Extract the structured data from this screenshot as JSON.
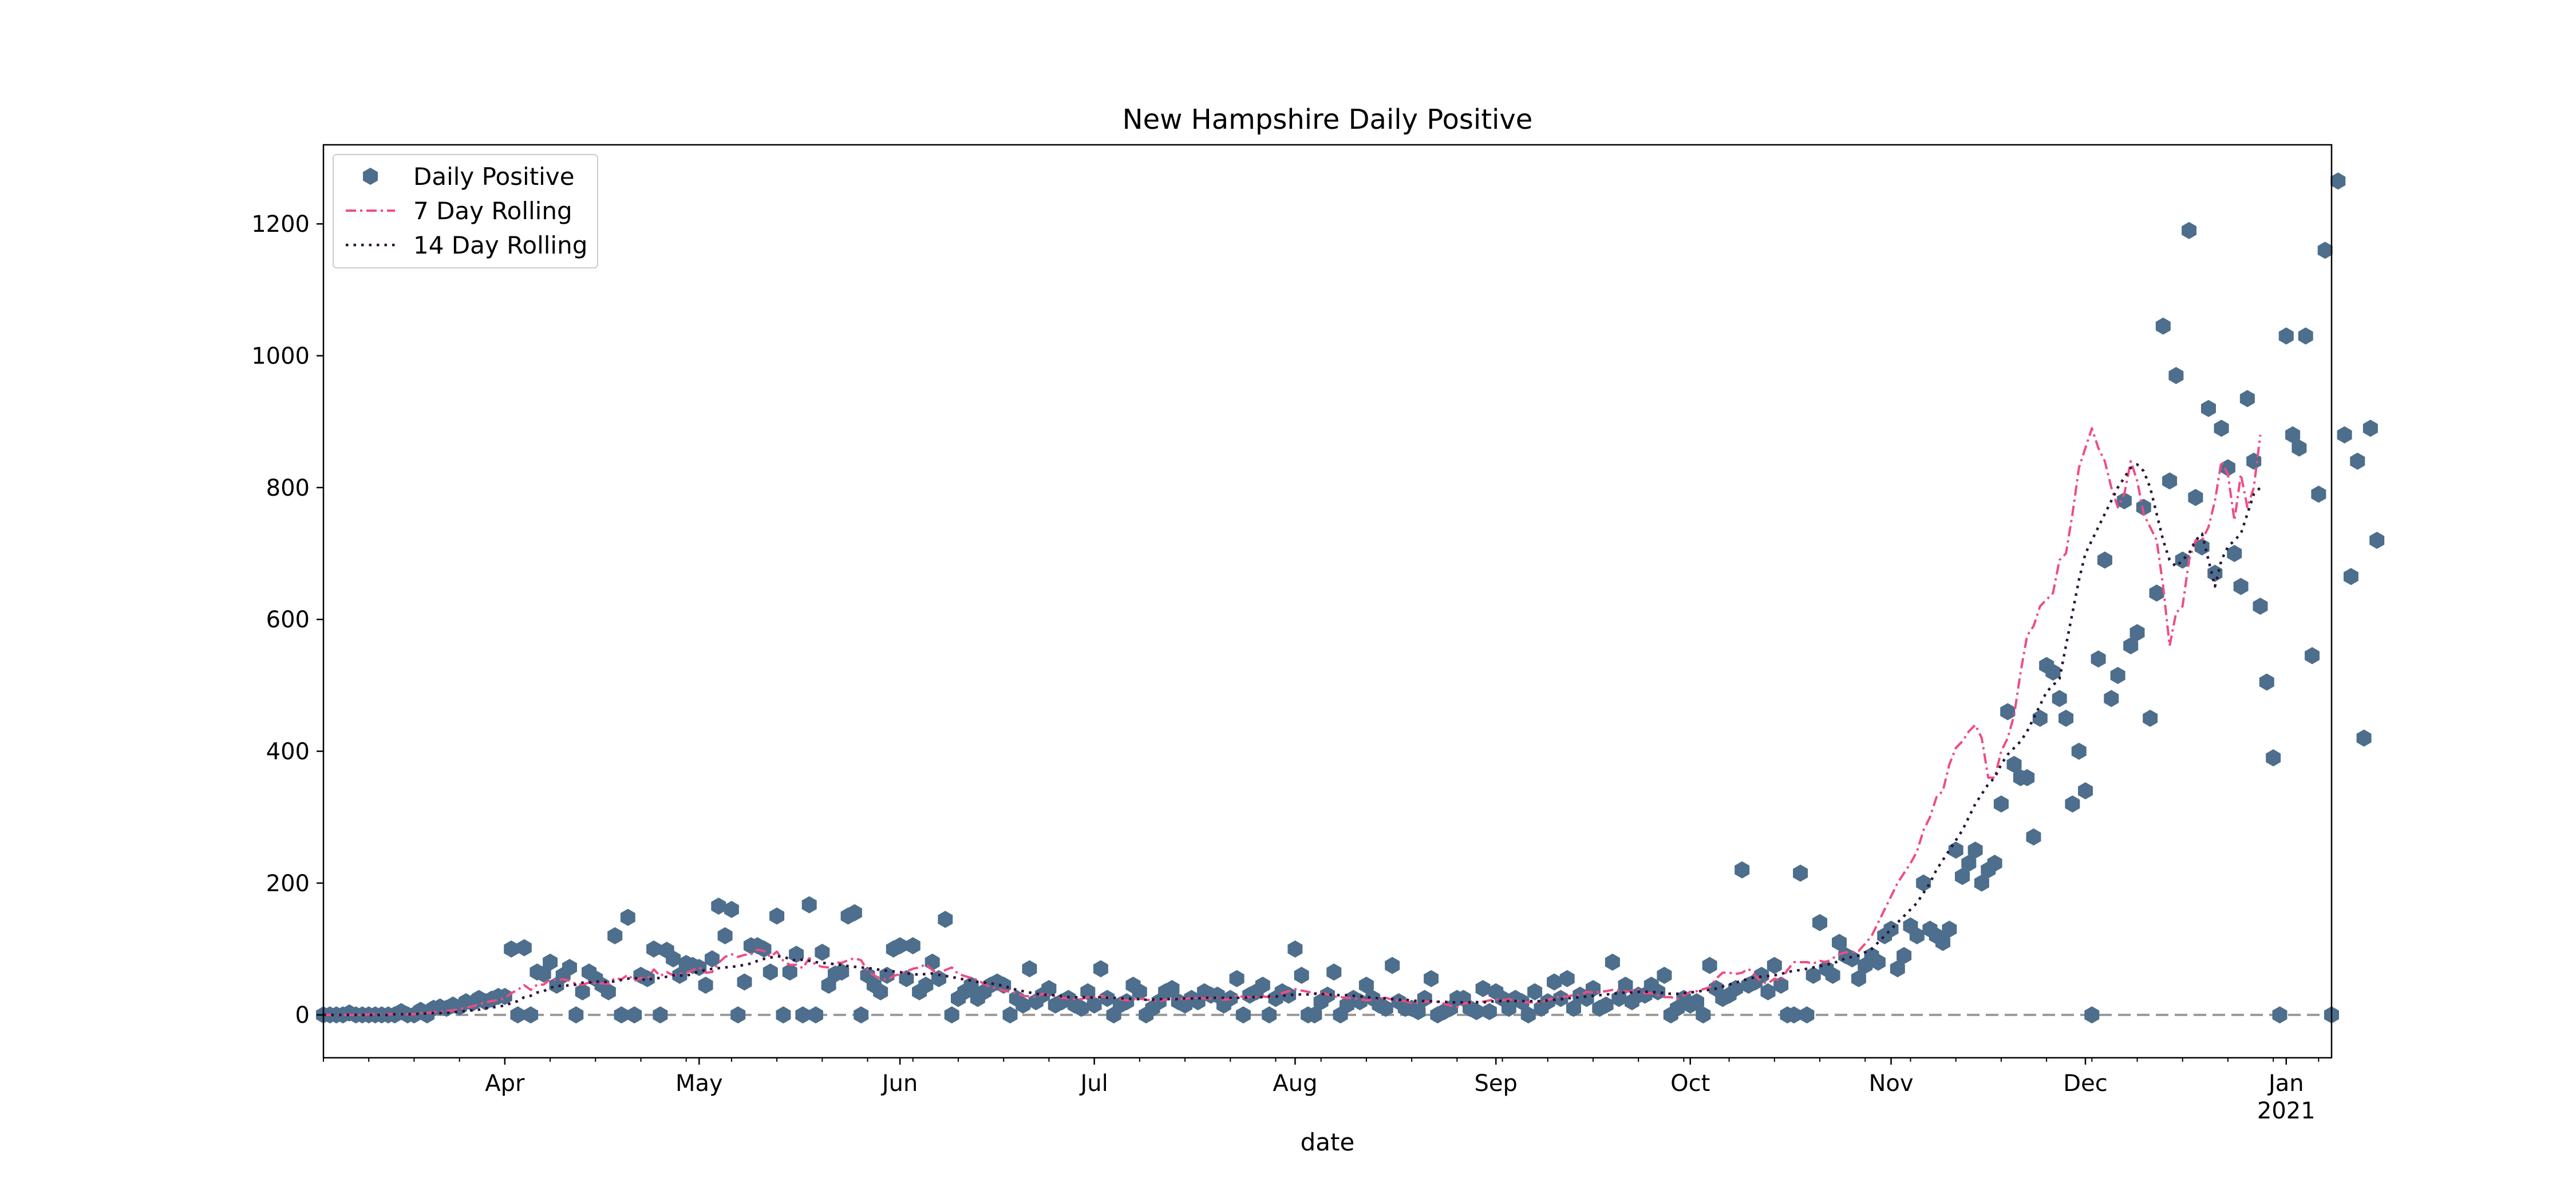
{
  "chart_data": {
    "type": "scatter",
    "title": "New Hampshire Daily Positive",
    "xlabel": "date",
    "ylabel": "",
    "x_range": [
      "2020-03-04",
      "2021-01-08"
    ],
    "ylim": [
      -65,
      1320
    ],
    "yticks": [
      0,
      200,
      400,
      600,
      800,
      1000,
      1200
    ],
    "xticks": [
      {
        "date": "2020-04-01",
        "label": "Apr"
      },
      {
        "date": "2020-05-01",
        "label": "May"
      },
      {
        "date": "2020-06-01",
        "label": "Jun"
      },
      {
        "date": "2020-07-01",
        "label": "Jul"
      },
      {
        "date": "2020-08-01",
        "label": "Aug"
      },
      {
        "date": "2020-09-01",
        "label": "Sep"
      },
      {
        "date": "2020-10-01",
        "label": "Oct"
      },
      {
        "date": "2020-11-01",
        "label": "Nov"
      },
      {
        "date": "2020-12-01",
        "label": "Dec"
      },
      {
        "date": "2021-01-01",
        "label": "Jan",
        "sublabel": "2021"
      }
    ],
    "grid": false,
    "legend_position": "top-left",
    "zero_line": {
      "y": 0,
      "style": "dashed",
      "color": "#999999"
    },
    "start_date": "2020-03-04",
    "series": [
      {
        "name": "Daily Positive",
        "kind": "markers",
        "marker": "hexagon",
        "color": "#4d6e8c",
        "values": [
          0,
          0,
          0,
          0,
          3,
          0,
          0,
          0,
          0,
          0,
          0,
          0,
          5,
          0,
          0,
          7,
          0,
          10,
          12,
          10,
          15,
          12,
          20,
          18,
          25,
          20,
          24,
          28,
          28,
          100,
          0,
          102,
          0,
          65,
          62,
          80,
          45,
          60,
          72,
          0,
          35,
          65,
          55,
          45,
          35,
          120,
          0,
          148,
          0,
          60,
          55,
          100,
          0,
          98,
          85,
          60,
          78,
          75,
          72,
          45,
          85,
          165,
          120,
          160,
          0,
          50,
          105,
          105,
          100,
          65,
          150,
          0,
          65,
          92,
          0,
          167,
          0,
          95,
          45,
          62,
          65,
          150,
          155,
          0,
          60,
          45,
          35,
          60,
          100,
          105,
          55,
          105,
          35,
          45,
          80,
          55,
          145,
          0,
          25,
          35,
          45,
          25,
          35,
          45,
          50,
          45,
          0,
          25,
          15,
          70,
          20,
          30,
          40,
          15,
          20,
          25,
          15,
          10,
          35,
          15,
          70,
          25,
          0,
          15,
          20,
          45,
          35,
          0,
          10,
          20,
          35,
          40,
          20,
          15,
          25,
          20,
          35,
          30,
          30,
          15,
          25,
          55,
          0,
          30,
          35,
          45,
          0,
          25,
          35,
          30,
          100,
          60,
          0,
          0,
          20,
          30,
          65,
          0,
          15,
          25,
          20,
          45,
          25,
          15,
          10,
          75,
          20,
          10,
          10,
          5,
          25,
          55,
          0,
          5,
          10,
          25,
          25,
          10,
          5,
          40,
          5,
          35,
          25,
          10,
          25,
          20,
          0,
          35,
          10,
          20,
          50,
          25,
          55,
          10,
          30,
          25,
          40,
          10,
          15,
          80,
          25,
          45,
          20,
          30,
          30,
          45,
          35,
          60,
          0,
          10,
          25,
          15,
          20,
          0,
          75,
          40,
          25,
          30,
          40,
          220,
          45,
          50,
          60,
          35,
          75,
          45,
          0,
          0,
          215,
          0,
          60,
          140,
          70,
          60,
          110,
          90,
          85,
          55,
          75,
          90,
          80,
          120,
          130,
          70,
          90,
          135,
          120,
          200,
          130,
          120,
          110,
          130,
          250,
          210,
          230,
          250,
          200,
          220,
          230,
          320,
          460,
          380,
          360,
          360,
          270,
          450,
          530,
          520,
          480,
          450,
          320,
          400,
          340,
          0,
          540,
          690,
          480,
          515,
          780,
          560,
          580,
          770,
          450,
          640,
          1045,
          810,
          970,
          690,
          1190,
          785,
          710,
          920,
          670,
          890,
          830,
          700,
          650,
          935,
          840,
          620,
          505,
          390,
          0,
          1030,
          880,
          860,
          1030,
          545,
          790,
          1160,
          0,
          1265,
          880,
          665,
          840,
          420,
          890,
          720
        ]
      },
      {
        "name": "7 Day Rolling",
        "kind": "line",
        "style": "dashdot",
        "color": "#ee4d82",
        "values": [
          0,
          0,
          0,
          0,
          0,
          0,
          0,
          1,
          1,
          1,
          1,
          1,
          1,
          1,
          1,
          3,
          3,
          4,
          5,
          6,
          7,
          9,
          11,
          13,
          16,
          19,
          21,
          23,
          25,
          33,
          38,
          45,
          38,
          46,
          46,
          54,
          53,
          54,
          52,
          47,
          46,
          49,
          48,
          48,
          47,
          56,
          54,
          61,
          52,
          56,
          55,
          69,
          59,
          65,
          60,
          62,
          64,
          68,
          72,
          64,
          65,
          79,
          88,
          92,
          88,
          91,
          92,
          99,
          97,
          88,
          96,
          82,
          76,
          76,
          71,
          86,
          76,
          73,
          72,
          80,
          79,
          83,
          86,
          83,
          67,
          60,
          55,
          53,
          59,
          62,
          66,
          70,
          72,
          77,
          68,
          62,
          68,
          72,
          62,
          59,
          56,
          53,
          47,
          42,
          40,
          37,
          35,
          33,
          29,
          28,
          27,
          32,
          30,
          29,
          26,
          25,
          24,
          24,
          27,
          26,
          29,
          26,
          26,
          24,
          22,
          24,
          25,
          23,
          22,
          21,
          23,
          25,
          25,
          24,
          26,
          26,
          25,
          25,
          26,
          23,
          24,
          30,
          27,
          27,
          27,
          28,
          27,
          28,
          33,
          36,
          39,
          37,
          35,
          33,
          34,
          31,
          28,
          27,
          26,
          25,
          24,
          22,
          23,
          25,
          26,
          23,
          22,
          21,
          18,
          18,
          20,
          21,
          20,
          17,
          14,
          12,
          17,
          19,
          20,
          20,
          22,
          24,
          22,
          24,
          22,
          20,
          19,
          19,
          19,
          23,
          26,
          28,
          28,
          30,
          30,
          35,
          34,
          35,
          36,
          38,
          37,
          36,
          35,
          38,
          33,
          33,
          30,
          27,
          27,
          24,
          30,
          35,
          36,
          39,
          42,
          55,
          64,
          64,
          62,
          64,
          70,
          60,
          50,
          48,
          55,
          52,
          68,
          80,
          80,
          80,
          78,
          82,
          80,
          86,
          92,
          95,
          95,
          97,
          108,
          120,
          140,
          160,
          180,
          200,
          215,
          230,
          248,
          280,
          300,
          330,
          340,
          380,
          405,
          415,
          430,
          440,
          420,
          360,
          360,
          400,
          420,
          455,
          520,
          575,
          590,
          620,
          630,
          640,
          690,
          700,
          760,
          830,
          860,
          890,
          860,
          840,
          800,
          770,
          790,
          840,
          810,
          760,
          740,
          720,
          650,
          560,
          610,
          620,
          690,
          720,
          720,
          740,
          780,
          840,
          820,
          750,
          820,
          770,
          800,
          880
        ]
      },
      {
        "name": "14 Day Rolling",
        "kind": "line",
        "style": "dotted",
        "color": "#2b1238",
        "values": [
          0,
          0,
          0,
          0,
          0,
          0,
          0,
          0,
          0,
          0,
          0,
          1,
          1,
          1,
          1,
          2,
          2,
          3,
          3,
          3,
          4,
          5,
          6,
          7,
          8,
          10,
          11,
          13,
          14,
          18,
          21,
          27,
          29,
          34,
          36,
          41,
          44,
          44,
          45,
          46,
          49,
          49,
          51,
          50,
          50,
          51,
          53,
          55,
          56,
          55,
          52,
          56,
          56,
          58,
          60,
          60,
          59,
          63,
          66,
          68,
          70,
          71,
          72,
          73,
          74,
          76,
          78,
          82,
          85,
          87,
          89,
          88,
          85,
          82,
          84,
          82,
          80,
          79,
          78,
          77,
          76,
          74,
          73,
          72,
          71,
          70,
          68,
          67,
          66,
          65,
          63,
          62,
          61,
          62,
          63,
          61,
          59,
          58,
          55,
          54,
          52,
          50,
          49,
          48,
          46,
          44,
          41,
          38,
          36,
          34,
          32,
          31,
          30,
          30,
          28,
          27,
          27,
          27,
          27,
          26,
          27,
          26,
          26,
          25,
          25,
          24,
          24,
          23,
          23,
          24,
          24,
          24,
          24,
          25,
          25,
          25,
          26,
          26,
          26,
          26,
          26,
          26,
          26,
          27,
          27,
          27,
          28,
          28,
          29,
          30,
          31,
          31,
          31,
          32,
          32,
          31,
          30,
          30,
          30,
          29,
          28,
          27,
          26,
          25,
          25,
          24,
          23,
          23,
          22,
          21,
          21,
          21,
          20,
          20,
          19,
          19,
          19,
          19,
          19,
          19,
          20,
          21,
          21,
          21,
          21,
          21,
          21,
          21,
          21,
          22,
          23,
          24,
          25,
          26,
          27,
          28,
          29,
          30,
          31,
          32,
          33,
          34,
          34,
          35,
          35,
          35,
          34,
          33,
          32,
          32,
          33,
          34,
          35,
          37,
          38,
          40,
          43,
          46,
          49,
          52,
          55,
          57,
          58,
          59,
          60,
          62,
          65,
          67,
          68,
          70,
          72,
          74,
          76,
          78,
          82,
          86,
          88,
          90,
          95,
          100,
          110,
          120,
          130,
          140,
          150,
          160,
          170,
          185,
          200,
          220,
          235,
          250,
          265,
          280,
          300,
          320,
          335,
          350,
          360,
          380,
          395,
          405,
          415,
          430,
          450,
          470,
          490,
          500,
          510,
          560,
          610,
          660,
          700,
          720,
          740,
          760,
          780,
          800,
          815,
          830,
          835,
          825,
          800,
          760,
          720,
          690,
          680,
          690,
          700,
          720,
          730,
          690,
          650,
          690,
          710,
          720,
          730,
          760,
          790,
          800
        ]
      }
    ]
  }
}
